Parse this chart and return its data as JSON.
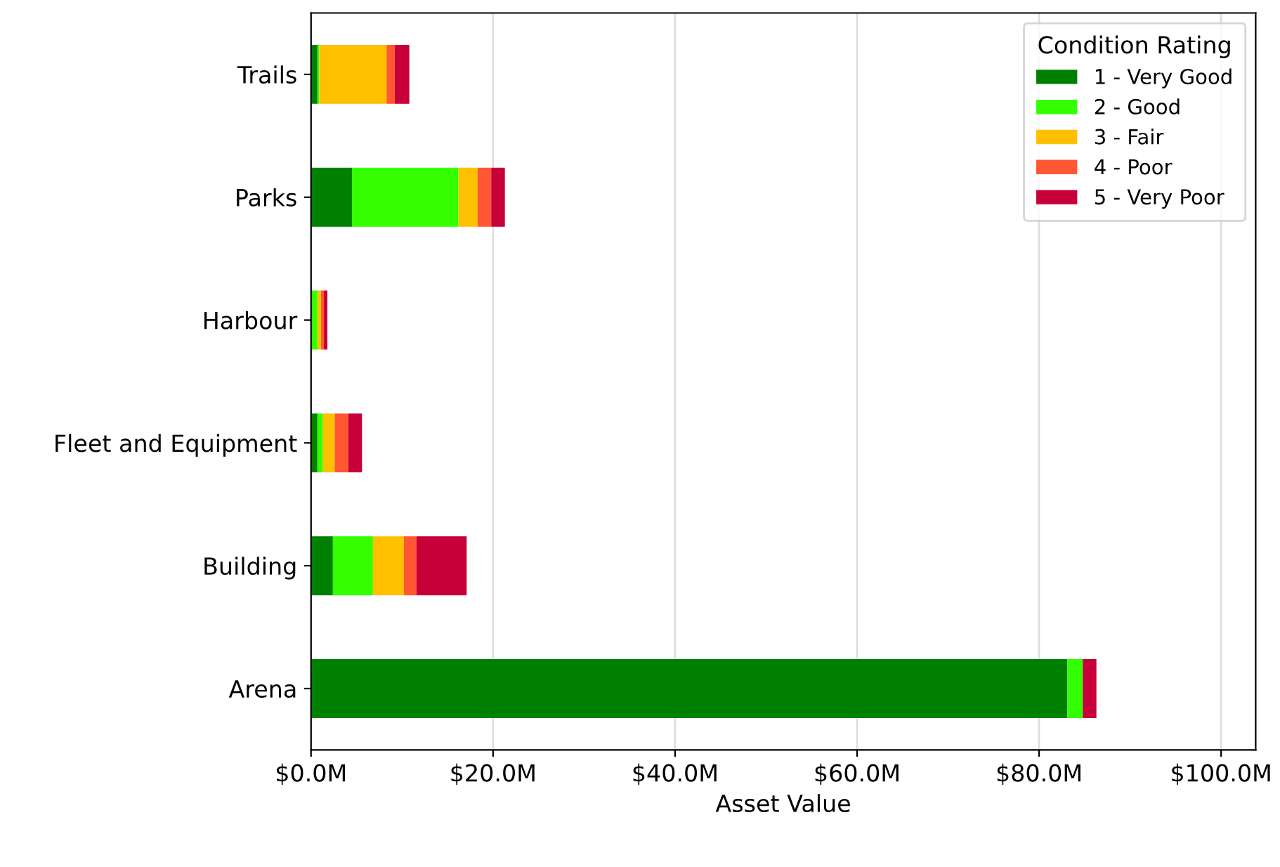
{
  "chart_data": {
    "type": "bar",
    "orientation": "horizontal",
    "stacked": true,
    "categories": [
      "Trails",
      "Parks",
      "Harbour",
      "Fleet and Equipment",
      "Building",
      "Arena"
    ],
    "series": [
      {
        "name": "1 - Very Good",
        "color": "#008000",
        "values": [
          0.7,
          4.5,
          null,
          0.7,
          2.4,
          83.1
        ]
      },
      {
        "name": "2 - Good",
        "color": "#33ff00",
        "values": [
          0.2,
          11.7,
          0.7,
          0.6,
          4.4,
          1.7
        ]
      },
      {
        "name": "3 - Fair",
        "color": "#ffc000",
        "values": [
          7.4,
          2.1,
          0.4,
          1.3,
          3.4,
          0
        ]
      },
      {
        "name": "4 - Poor",
        "color": "#ff5733",
        "values": [
          0.9,
          1.5,
          0.3,
          1.5,
          1.4,
          0
        ]
      },
      {
        "name": "5 - Very Poor",
        "color": "#c70039",
        "values": [
          1.6,
          1.5,
          0.4,
          1.5,
          5.5,
          1.5
        ]
      }
    ],
    "xlabel": "Asset Value",
    "legend_title": "Condition Rating",
    "legend": "top right",
    "grid": "x",
    "xlim": [
      0,
      103.8
    ],
    "xticks": [
      {
        "value": 0,
        "label": "$0.0M"
      },
      {
        "value": 20,
        "label": "$20.0M"
      },
      {
        "value": 40,
        "label": "$40.0M"
      },
      {
        "value": 60,
        "label": "$60.0M"
      },
      {
        "value": 80,
        "label": "$80.0M"
      },
      {
        "value": 100,
        "label": "$100.0M"
      }
    ]
  }
}
